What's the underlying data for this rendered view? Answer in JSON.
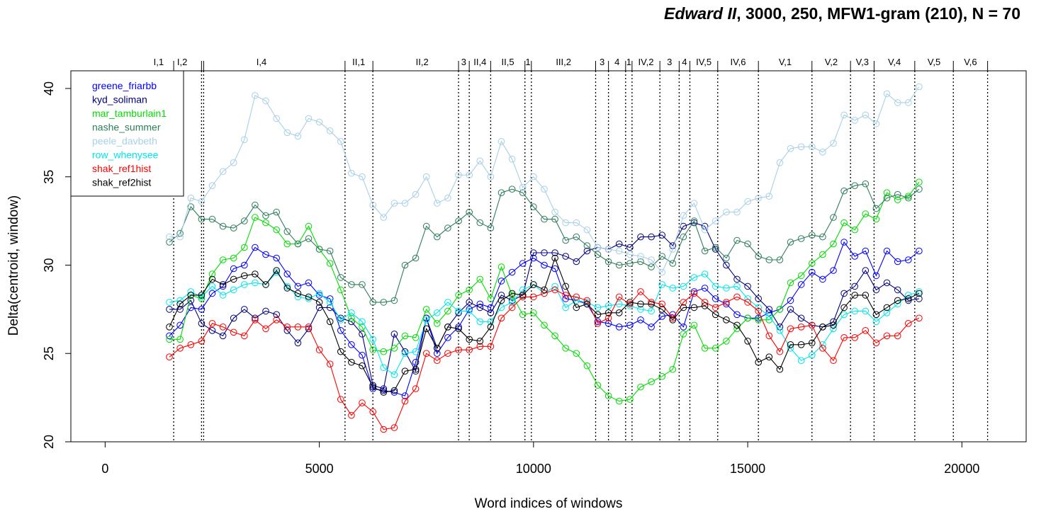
{
  "title": {
    "italic_part": "Edward II",
    "rest": ", 3000, 250, MFW1-gram (210), N = 70"
  },
  "chart_data": {
    "type": "line",
    "xlabel": "Word indices of windows",
    "ylabel": "Delta(centroid, window)",
    "xlim": [
      -800,
      21500
    ],
    "ylim": [
      20,
      41
    ],
    "x_ticks": [
      0,
      5000,
      10000,
      15000,
      20000
    ],
    "y_ticks": [
      20,
      25,
      30,
      35,
      40
    ],
    "grid": false,
    "legend_position": "top-left",
    "markers": "open circles",
    "scene_boundaries": [
      1600,
      2250,
      2300,
      5600,
      6250,
      8250,
      8500,
      9000,
      9800,
      9950,
      11450,
      11750,
      12150,
      12300,
      12950,
      13400,
      13650,
      14300,
      15250,
      16500,
      17400,
      17950,
      18900,
      19800,
      20600
    ],
    "scene_labels": [
      {
        "label": "I,1",
        "x": 1250
      },
      {
        "label": "I,2",
        "x": 1800
      },
      {
        "label": "I,4",
        "x": 3650
      },
      {
        "label": "II,1",
        "x": 5920
      },
      {
        "label": "II,2",
        "x": 7400
      },
      {
        "label": "3",
        "x": 8370
      },
      {
        "label": "II,4",
        "x": 8750
      },
      {
        "label": "II,5",
        "x": 9400
      },
      {
        "label": "1",
        "x": 9870
      },
      {
        "label": "III,2",
        "x": 10700
      },
      {
        "label": "3",
        "x": 11600
      },
      {
        "label": "4",
        "x": 11950
      },
      {
        "label": "1",
        "x": 12225
      },
      {
        "label": "IV,2",
        "x": 12625
      },
      {
        "label": "3",
        "x": 13175
      },
      {
        "label": "4",
        "x": 13525
      },
      {
        "label": "IV,5",
        "x": 13975
      },
      {
        "label": "IV,6",
        "x": 14775
      },
      {
        "label": "V,1",
        "x": 15875
      },
      {
        "label": "V,2",
        "x": 16950
      },
      {
        "label": "V,3",
        "x": 17675
      },
      {
        "label": "V,4",
        "x": 18425
      },
      {
        "label": "V,5",
        "x": 19350
      },
      {
        "label": "V,6",
        "x": 20200
      }
    ],
    "x": [
      1500,
      1750,
      2000,
      2250,
      2500,
      2750,
      3000,
      3250,
      3500,
      3750,
      4000,
      4250,
      4500,
      4750,
      5000,
      5250,
      5500,
      5750,
      6000,
      6250,
      6500,
      6750,
      7000,
      7250,
      7500,
      7750,
      8000,
      8250,
      8500,
      8750,
      9000,
      9250,
      9500,
      9750,
      10000,
      10250,
      10500,
      10750,
      11000,
      11250,
      11500,
      11750,
      12000,
      12250,
      12500,
      12750,
      13000,
      13250,
      13500,
      13750,
      14000,
      14250,
      14500,
      14750,
      15000,
      15250,
      15500,
      15750,
      16000,
      16250,
      16500,
      16750,
      17000,
      17250,
      17500,
      17750,
      18000,
      18250,
      18500,
      18750,
      19000
    ],
    "series": [
      {
        "name": "greene_friarbb",
        "color": "#0000FF",
        "values": [
          26.0,
          26.6,
          27.6,
          27.5,
          28.4,
          28.8,
          29.8,
          30.0,
          31.0,
          30.6,
          30.4,
          29.5,
          28.8,
          29.0,
          28.3,
          28.1,
          26.3,
          25.5,
          24.9,
          23.0,
          22.9,
          22.8,
          22.6,
          24.5,
          27.0,
          25.0,
          25.9,
          26.5,
          27.5,
          27.8,
          27.6,
          29.1,
          29.6,
          30.1,
          30.4,
          30.0,
          29.8,
          28.1,
          28.0,
          27.8,
          26.8,
          26.7,
          26.5,
          26.6,
          26.9,
          26.5,
          27.1,
          27.2,
          26.5,
          28.5,
          28.7,
          28.1,
          27.8,
          27.2,
          27.0,
          27.0,
          27.3,
          27.5,
          28.0,
          28.9,
          29.6,
          29.2,
          29.7,
          31.3,
          30.5,
          30.8,
          29.4,
          30.8,
          30.2,
          30.3,
          30.8
        ]
      },
      {
        "name": "kyd_soliman",
        "color": "#000080",
        "values": [
          27.5,
          27.5,
          28.0,
          26.7,
          26.3,
          26.0,
          27.0,
          27.5,
          27.0,
          27.4,
          27.2,
          26.3,
          25.6,
          26.4,
          27.6,
          27.6,
          27.0,
          26.8,
          26.1,
          23.2,
          23.0,
          26.1,
          25.1,
          24.0,
          27.0,
          25.3,
          26.5,
          27.3,
          27.9,
          27.6,
          27.3,
          28.3,
          28.0,
          28.3,
          30.7,
          30.7,
          30.7,
          30.5,
          30.2,
          30.8,
          31.0,
          30.9,
          31.2,
          31.0,
          31.6,
          31.6,
          31.7,
          31.1,
          32.2,
          32.4,
          32.2,
          30.9,
          30.0,
          29.2,
          28.8,
          28.1,
          27.5,
          26.5,
          27.5,
          27.0,
          26.6,
          26.5,
          26.8,
          28.4,
          28.8,
          29.7,
          28.6,
          29.0,
          28.6,
          28.0,
          28.1
        ]
      },
      {
        "name": "mar_tamburlain1",
        "color": "#00DD00",
        "values": [
          25.8,
          25.8,
          28.3,
          28.1,
          29.5,
          30.3,
          30.4,
          31.0,
          32.7,
          32.4,
          32.0,
          31.2,
          31.2,
          32.2,
          30.9,
          30.1,
          28.6,
          27.0,
          26.5,
          25.2,
          25.1,
          25.3,
          26.0,
          25.9,
          27.5,
          26.7,
          27.4,
          28.3,
          28.6,
          29.2,
          28.1,
          29.9,
          28.3,
          27.2,
          27.3,
          26.6,
          26.0,
          25.3,
          25.0,
          24.3,
          23.2,
          22.6,
          22.3,
          22.4,
          23.1,
          23.4,
          23.7,
          24.1,
          26.1,
          26.6,
          25.3,
          25.3,
          25.7,
          26.4,
          27.0,
          26.9,
          26.9,
          27.5,
          29.0,
          29.4,
          30.1,
          30.6,
          31.2,
          32.4,
          32.0,
          32.9,
          32.6,
          34.1,
          33.7,
          33.9,
          34.7
        ]
      },
      {
        "name": "nashe_summer",
        "color": "#2E7D5B",
        "values": [
          31.3,
          31.8,
          33.3,
          32.6,
          32.6,
          32.2,
          32.1,
          32.5,
          33.4,
          32.8,
          33.0,
          31.9,
          31.2,
          31.5,
          30.9,
          30.8,
          29.3,
          28.9,
          28.9,
          27.9,
          27.9,
          28.0,
          30.0,
          30.4,
          32.2,
          31.6,
          32.1,
          32.5,
          33.0,
          32.4,
          32.1,
          34.1,
          34.3,
          34.1,
          33.3,
          32.6,
          32.6,
          31.4,
          31.6,
          31.1,
          30.6,
          30.2,
          30.0,
          30.1,
          30.2,
          29.9,
          30.5,
          30.1,
          31.6,
          32.5,
          30.8,
          31.0,
          30.4,
          31.4,
          31.2,
          30.5,
          30.3,
          30.3,
          31.3,
          31.5,
          31.7,
          31.6,
          32.7,
          34.2,
          34.5,
          34.6,
          33.2,
          33.8,
          34.0,
          33.8,
          34.3
        ]
      },
      {
        "name": "peele_davbeth",
        "color": "#A8D0E6",
        "values": [
          31.6,
          31.6,
          33.8,
          33.6,
          34.5,
          35.3,
          35.8,
          37.1,
          39.6,
          39.3,
          38.3,
          37.5,
          37.3,
          38.3,
          38.1,
          37.6,
          37.0,
          35.2,
          35.0,
          33.4,
          32.7,
          33.5,
          33.5,
          34.0,
          35.0,
          33.5,
          33.8,
          35.1,
          35.1,
          35.9,
          35.0,
          37.0,
          36.0,
          34.4,
          35.0,
          34.3,
          33.0,
          32.4,
          32.4,
          32.0,
          31.0,
          30.9,
          30.8,
          30.6,
          30.5,
          30.3,
          29.6,
          30.9,
          32.8,
          33.5,
          32.0,
          32.5,
          33.0,
          33.0,
          33.6,
          33.8,
          33.9,
          35.8,
          36.6,
          36.7,
          36.7,
          36.4,
          36.9,
          38.5,
          38.2,
          38.5,
          38.0,
          39.7,
          39.2,
          39.2,
          40.1
        ]
      },
      {
        "name": "row_whenysee",
        "color": "#00E5EE",
        "values": [
          27.9,
          28.0,
          28.5,
          28.2,
          28.8,
          28.3,
          28.6,
          28.9,
          29.0,
          28.9,
          29.6,
          28.8,
          28.2,
          28.1,
          28.4,
          27.9,
          26.9,
          27.3,
          26.8,
          25.8,
          24.2,
          23.8,
          25.0,
          25.1,
          26.9,
          27.3,
          27.9,
          27.4,
          27.4,
          26.8,
          26.8,
          27.6,
          27.9,
          28.6,
          28.9,
          28.4,
          28.8,
          27.6,
          28.0,
          27.9,
          27.6,
          27.7,
          27.8,
          27.7,
          27.5,
          27.4,
          28.9,
          28.7,
          28.8,
          29.3,
          29.5,
          28.8,
          28.7,
          28.8,
          28.1,
          27.6,
          27.1,
          26.3,
          25.3,
          24.6,
          24.9,
          25.5,
          26.4,
          27.2,
          27.4,
          27.4,
          26.8,
          27.3,
          27.8,
          28.3,
          28.5
        ]
      },
      {
        "name": "shak_ref1hist",
        "color": "#FF0000",
        "values": [
          24.8,
          25.3,
          25.5,
          25.7,
          26.7,
          26.5,
          26.2,
          26.0,
          26.9,
          26.4,
          26.9,
          26.5,
          26.5,
          26.5,
          25.2,
          24.4,
          22.4,
          21.5,
          22.2,
          21.7,
          20.7,
          20.8,
          22.3,
          23.0,
          25.0,
          24.6,
          25.0,
          25.2,
          25.2,
          25.4,
          25.4,
          27.0,
          27.6,
          28.2,
          28.2,
          28.4,
          28.6,
          28.3,
          28.2,
          28.0,
          26.7,
          27.0,
          28.2,
          27.8,
          28.5,
          27.9,
          27.8,
          27.0,
          27.9,
          28.4,
          27.9,
          27.6,
          27.9,
          28.2,
          27.9,
          27.4,
          26.0,
          25.1,
          26.4,
          26.5,
          26.6,
          25.3,
          24.6,
          25.9,
          25.9,
          26.3,
          25.6,
          26.0,
          26.0,
          26.7,
          27.0
        ]
      },
      {
        "name": "shak_ref2hist",
        "color": "#000000",
        "values": [
          26.5,
          27.8,
          28.3,
          28.3,
          29.2,
          28.9,
          29.2,
          29.4,
          29.5,
          28.9,
          29.7,
          28.7,
          28.4,
          28.2,
          27.9,
          26.8,
          25.1,
          24.5,
          24.3,
          23.1,
          22.8,
          22.9,
          24.0,
          24.1,
          26.4,
          25.3,
          26.5,
          26.4,
          25.8,
          25.7,
          26.5,
          28.0,
          28.4,
          28.3,
          28.9,
          28.6,
          30.4,
          28.8,
          27.6,
          27.8,
          27.2,
          27.3,
          27.3,
          27.9,
          27.8,
          27.8,
          27.5,
          26.9,
          27.6,
          27.6,
          27.7,
          27.2,
          26.9,
          26.6,
          25.7,
          24.5,
          24.8,
          24.1,
          25.5,
          25.5,
          25.6,
          26.5,
          26.6,
          27.6,
          28.3,
          28.3,
          27.2,
          27.6,
          28.0,
          28.1,
          28.4
        ]
      }
    ]
  }
}
